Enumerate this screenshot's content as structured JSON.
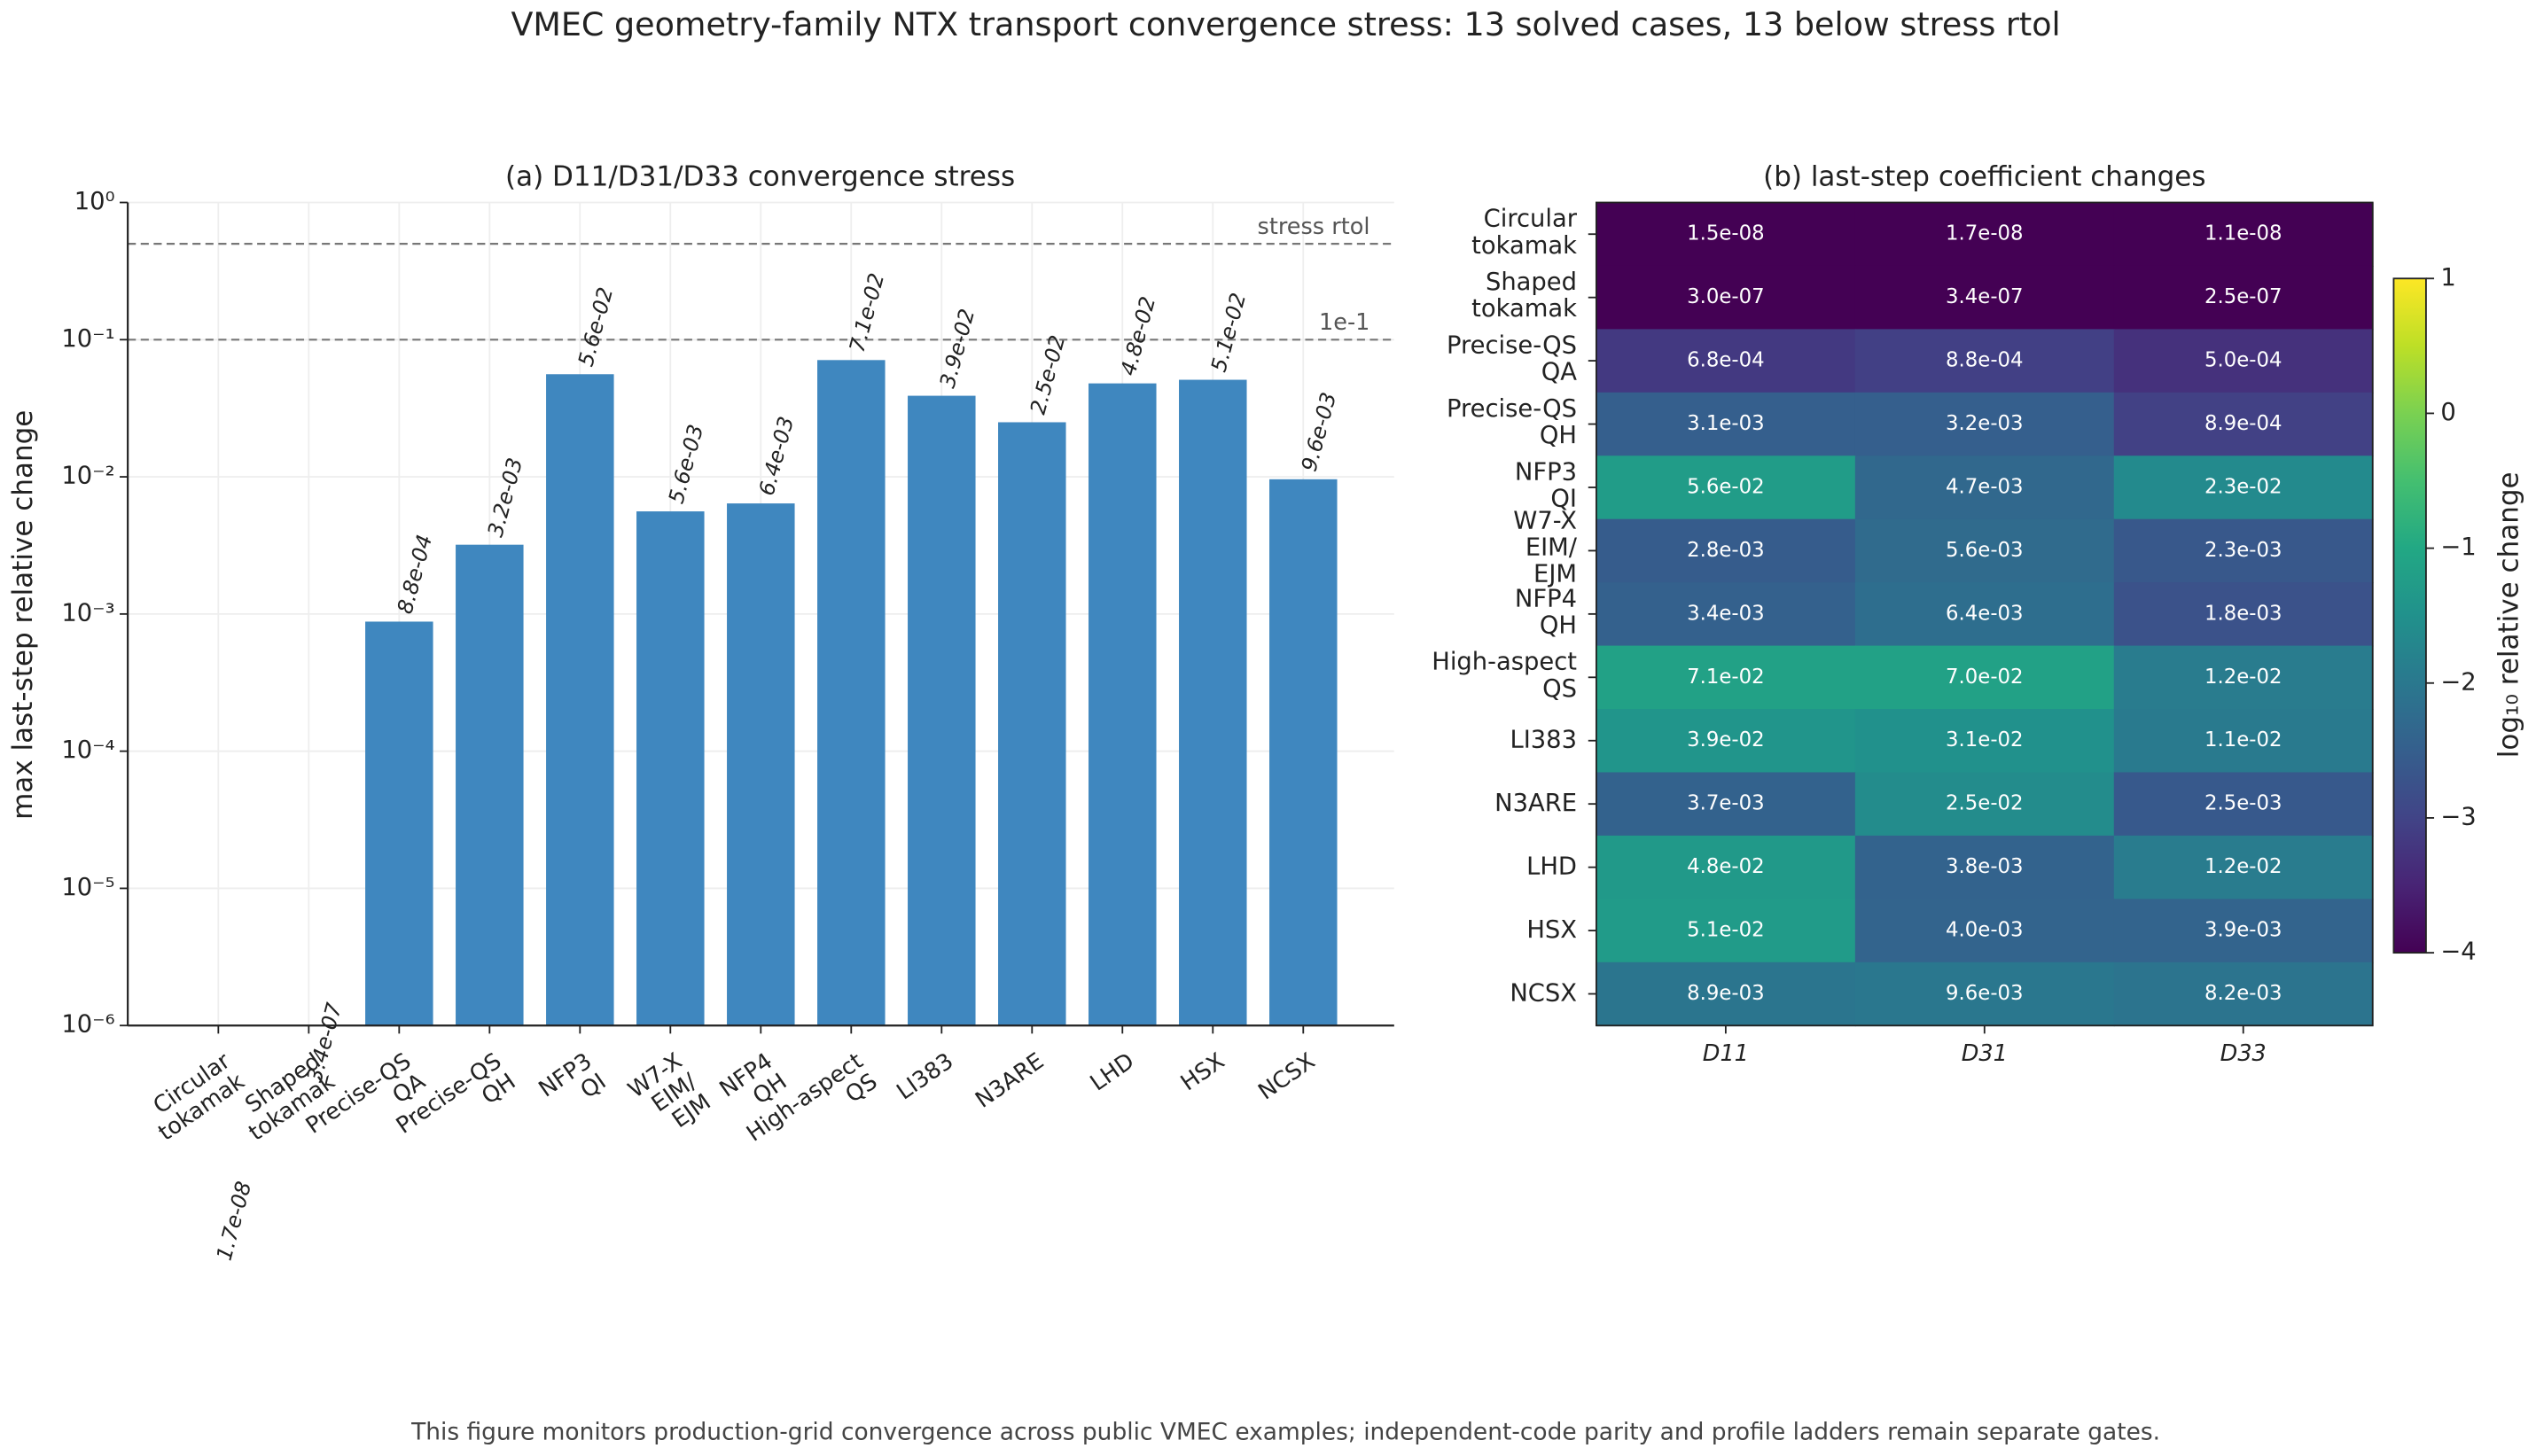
{
  "title": "VMEC geometry-family NTX transport convergence stress: 13 solved cases, 13 below stress rtol",
  "footnote": "This figure monitors production-grid convergence across public VMEC examples; independent-code parity and profile ladders remain separate gates.",
  "chart_data": [
    {
      "type": "bar",
      "title": "(a) D11/D31/D33 convergence stress",
      "ylabel": "max last-step relative change",
      "categories": [
        "Circular\ntokamak",
        "Shaped\ntokamak",
        "Precise-QS\nQA",
        "Precise-QS\nQH",
        "NFP3\nQI",
        "W7-X\nEIM/\nEJM",
        "NFP4\nQH",
        "High-aspect\nQS",
        "LI383",
        "N3ARE",
        "LHD",
        "HSX",
        "NCSX"
      ],
      "values": [
        1.7e-08,
        3.4e-07,
        0.00088,
        0.0032,
        0.056,
        0.0056,
        0.0064,
        0.071,
        0.039,
        0.025,
        0.048,
        0.051,
        0.0096
      ],
      "value_labels": [
        "1.7e-08",
        "3.4e-07",
        "8.8e-04",
        "3.2e-03",
        "5.6e-02",
        "5.6e-03",
        "6.4e-03",
        "7.1e-02",
        "3.9e-02",
        "2.5e-02",
        "4.8e-02",
        "5.1e-02",
        "9.6e-03"
      ],
      "color": "#3f87bf",
      "log_scale": true,
      "ylim": [
        1e-06,
        1
      ],
      "yticks": [
        {
          "value": 1e-06,
          "label": "10⁻⁶"
        },
        {
          "value": 1e-05,
          "label": "10⁻⁵"
        },
        {
          "value": 0.0001,
          "label": "10⁻⁴"
        },
        {
          "value": 0.001,
          "label": "10⁻³"
        },
        {
          "value": 0.01,
          "label": "10⁻²"
        },
        {
          "value": 0.1,
          "label": "10⁻¹"
        },
        {
          "value": 1,
          "label": "10⁰"
        }
      ],
      "grid": true,
      "reference_lines": [
        {
          "value": 0.5,
          "label": "stress rtol"
        },
        {
          "value": 0.1,
          "label": "1e-1"
        }
      ]
    },
    {
      "type": "heatmap",
      "title": "(b) last-step coefficient changes",
      "categories": [
        "Circular\ntokamak",
        "Shaped\ntokamak",
        "Precise-QS\nQA",
        "Precise-QS\nQH",
        "NFP3\nQI",
        "W7-X\nEIM/\nEJM",
        "NFP4\nQH",
        "High-aspect\nQS",
        "LI383",
        "N3ARE",
        "LHD",
        "HSX",
        "NCSX"
      ],
      "columns": [
        "D11",
        "D31",
        "D33"
      ],
      "values": [
        [
          1.5e-08,
          1.7e-08,
          1.1e-08
        ],
        [
          3e-07,
          3.4e-07,
          2.5e-07
        ],
        [
          0.00068,
          0.00088,
          0.0005
        ],
        [
          0.0031,
          0.0032,
          0.00089
        ],
        [
          0.056,
          0.0047,
          0.023
        ],
        [
          0.0028,
          0.0056,
          0.0023
        ],
        [
          0.0034,
          0.0064,
          0.0018
        ],
        [
          0.071,
          0.07,
          0.012
        ],
        [
          0.039,
          0.031,
          0.011
        ],
        [
          0.0037,
          0.025,
          0.0025
        ],
        [
          0.048,
          0.0038,
          0.012
        ],
        [
          0.051,
          0.004,
          0.0039
        ],
        [
          0.0089,
          0.0096,
          0.0082
        ]
      ],
      "value_labels": [
        [
          "1.5e-08",
          "1.7e-08",
          "1.1e-08"
        ],
        [
          "3.0e-07",
          "3.4e-07",
          "2.5e-07"
        ],
        [
          "6.8e-04",
          "8.8e-04",
          "5.0e-04"
        ],
        [
          "3.1e-03",
          "3.2e-03",
          "8.9e-04"
        ],
        [
          "5.6e-02",
          "4.7e-03",
          "2.3e-02"
        ],
        [
          "2.8e-03",
          "5.6e-03",
          "2.3e-03"
        ],
        [
          "3.4e-03",
          "6.4e-03",
          "1.8e-03"
        ],
        [
          "7.1e-02",
          "7.0e-02",
          "1.2e-02"
        ],
        [
          "3.9e-02",
          "3.1e-02",
          "1.1e-02"
        ],
        [
          "3.7e-03",
          "2.5e-02",
          "2.5e-03"
        ],
        [
          "4.8e-02",
          "3.8e-03",
          "1.2e-02"
        ],
        [
          "5.1e-02",
          "4.0e-03",
          "3.9e-03"
        ],
        [
          "8.9e-03",
          "9.6e-03",
          "8.2e-03"
        ]
      ],
      "colormap": "viridis",
      "clim": [
        -4,
        1
      ],
      "cticks": [
        {
          "value": -4,
          "label": "−4"
        },
        {
          "value": -3,
          "label": "−3"
        },
        {
          "value": -2,
          "label": "−2"
        },
        {
          "value": -1,
          "label": "−1"
        },
        0,
        1
      ],
      "colorbar_label": "log₁₀ relative change"
    }
  ]
}
